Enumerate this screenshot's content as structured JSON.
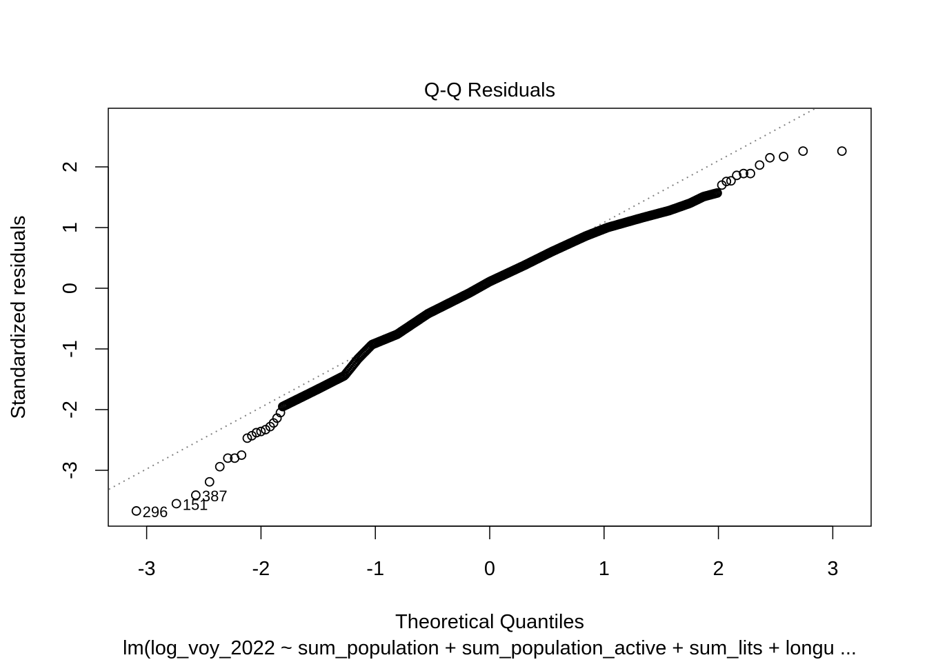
{
  "chart_data": {
    "type": "scatter",
    "title": "Q-Q Residuals",
    "xlabel": "Theoretical Quantiles",
    "ylabel": "Standardized residuals",
    "subtitle": "lm(log_voy_2022 ~ sum_population + sum_population_active + sum_lits + longu ...",
    "xlim": [
      -3.33,
      3.33
    ],
    "ylim": [
      -3.88,
      3.0
    ],
    "xticks": [
      "-3",
      "-2",
      "-1",
      "0",
      "1",
      "2",
      "3"
    ],
    "xtick_values": [
      -3,
      -2,
      -1,
      0,
      1,
      2,
      3
    ],
    "yticks": [
      "-3",
      "-2",
      "-1",
      "0",
      "1",
      "2"
    ],
    "ytick_values": [
      -3,
      -2,
      -1,
      0,
      1,
      2
    ],
    "grid": false,
    "reference_line": {
      "intercept": 0.07,
      "slope": 1.016,
      "style": "dotted",
      "color": "#808080"
    },
    "tail_points": [
      [
        -3.09,
        -3.67
      ],
      [
        -2.74,
        -3.55
      ],
      [
        -2.57,
        -3.41
      ],
      [
        -2.45,
        -3.19
      ],
      [
        -2.36,
        -2.94
      ],
      [
        -2.29,
        -2.8
      ],
      [
        -2.23,
        -2.8
      ],
      [
        -2.17,
        -2.75
      ],
      [
        -2.12,
        -2.47
      ],
      [
        -2.08,
        -2.43
      ],
      [
        -2.04,
        -2.38
      ],
      [
        -2.0,
        -2.36
      ],
      [
        -1.96,
        -2.33
      ],
      [
        -1.92,
        -2.28
      ],
      [
        -1.89,
        -2.22
      ],
      [
        -1.86,
        -2.14
      ],
      [
        -1.83,
        -2.05
      ],
      [
        2.03,
        1.7
      ],
      [
        2.07,
        1.76
      ],
      [
        2.11,
        1.77
      ],
      [
        2.16,
        1.86
      ],
      [
        2.22,
        1.89
      ],
      [
        2.28,
        1.89
      ],
      [
        2.36,
        2.03
      ],
      [
        2.45,
        2.15
      ],
      [
        2.57,
        2.17
      ],
      [
        2.74,
        2.26
      ],
      [
        3.08,
        2.26
      ]
    ],
    "body_curve": [
      [
        -1.81,
        -1.95
      ],
      [
        -1.51,
        -1.67
      ],
      [
        -1.27,
        -1.44
      ],
      [
        -1.15,
        -1.16
      ],
      [
        -1.03,
        -0.93
      ],
      [
        -0.81,
        -0.76
      ],
      [
        -0.54,
        -0.42
      ],
      [
        -0.18,
        -0.08
      ],
      [
        0,
        0.11
      ],
      [
        0.3,
        0.375
      ],
      [
        0.54,
        0.6
      ],
      [
        0.84,
        0.86
      ],
      [
        1.03,
        1.0
      ],
      [
        1.33,
        1.16
      ],
      [
        1.57,
        1.28
      ],
      [
        1.75,
        1.4
      ],
      [
        1.87,
        1.51
      ],
      [
        1.99,
        1.57
      ]
    ],
    "body_point_count": 370,
    "point_labels": [
      {
        "text": "296",
        "at": [
          -3.09,
          -3.67
        ]
      },
      {
        "text": "151",
        "at": [
          -2.74,
          -3.55
        ]
      },
      {
        "text": "387",
        "at": [
          -2.57,
          -3.41
        ]
      }
    ]
  }
}
